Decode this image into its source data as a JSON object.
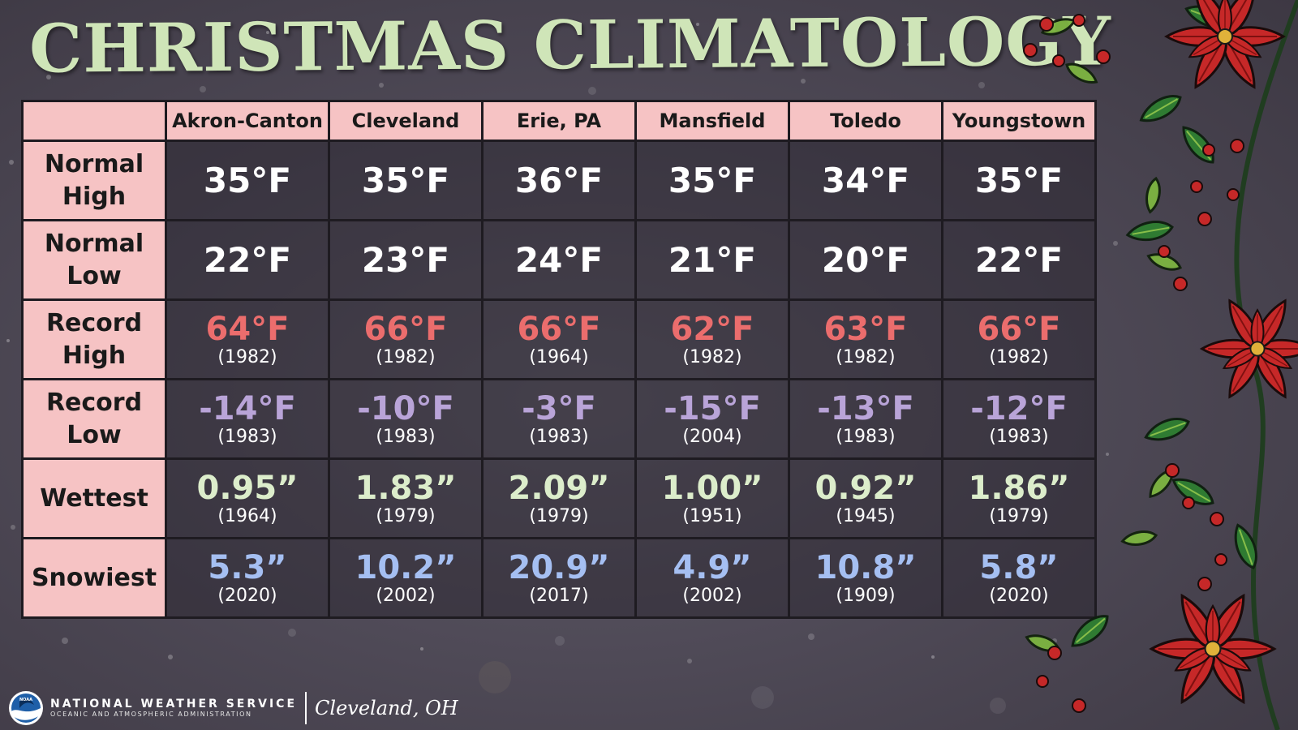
{
  "title": "CHRISTMAS CLIMATOLOGY",
  "colors": {
    "header_bg": "#f6c3c4",
    "record_high": "#eb6d6d",
    "record_low": "#b9a4d8",
    "wettest": "#dcedcb",
    "snowiest": "#a5bff2",
    "title": "#cfe5b8"
  },
  "cities": [
    "Akron-Canton",
    "Cleveland",
    "Erie, PA",
    "Mansfield",
    "Toledo",
    "Youngstown"
  ],
  "rows": [
    {
      "label_lines": [
        "Normal",
        "High"
      ],
      "style": "normal",
      "cells": [
        {
          "value": "35°F"
        },
        {
          "value": "35°F"
        },
        {
          "value": "36°F"
        },
        {
          "value": "35°F"
        },
        {
          "value": "34°F"
        },
        {
          "value": "35°F"
        }
      ]
    },
    {
      "label_lines": [
        "Normal",
        "Low"
      ],
      "style": "normal",
      "cells": [
        {
          "value": "22°F"
        },
        {
          "value": "23°F"
        },
        {
          "value": "24°F"
        },
        {
          "value": "21°F"
        },
        {
          "value": "20°F"
        },
        {
          "value": "22°F"
        }
      ]
    },
    {
      "label_lines": [
        "Record",
        "High"
      ],
      "style": "rhigh",
      "cells": [
        {
          "value": "64°F",
          "year": "(1982)"
        },
        {
          "value": "66°F",
          "year": "(1982)"
        },
        {
          "value": "66°F",
          "year": "(1964)"
        },
        {
          "value": "62°F",
          "year": "(1982)"
        },
        {
          "value": "63°F",
          "year": "(1982)"
        },
        {
          "value": "66°F",
          "year": "(1982)"
        }
      ]
    },
    {
      "label_lines": [
        "Record",
        "Low"
      ],
      "style": "rlow",
      "cells": [
        {
          "value": "-14°F",
          "year": "(1983)"
        },
        {
          "value": "-10°F",
          "year": "(1983)"
        },
        {
          "value": "-3°F",
          "year": "(1983)"
        },
        {
          "value": "-15°F",
          "year": "(2004)"
        },
        {
          "value": "-13°F",
          "year": "(1983)"
        },
        {
          "value": "-12°F",
          "year": "(1983)"
        }
      ]
    },
    {
      "label_lines": [
        "Wettest"
      ],
      "style": "wet",
      "cells": [
        {
          "value": "0.95”",
          "year": "(1964)"
        },
        {
          "value": "1.83”",
          "year": "(1979)"
        },
        {
          "value": "2.09”",
          "year": "(1979)"
        },
        {
          "value": "1.00”",
          "year": "(1951)"
        },
        {
          "value": "0.92”",
          "year": "(1945)"
        },
        {
          "value": "1.86”",
          "year": "(1979)"
        }
      ]
    },
    {
      "label_lines": [
        "Snowiest"
      ],
      "style": "snow",
      "cells": [
        {
          "value": "5.3”",
          "year": "(2020)"
        },
        {
          "value": "10.2”",
          "year": "(2002)"
        },
        {
          "value": "20.9”",
          "year": "(2017)"
        },
        {
          "value": "4.9”",
          "year": "(2002)"
        },
        {
          "value": "10.8”",
          "year": "(1909)"
        },
        {
          "value": "5.8”",
          "year": "(2020)"
        }
      ]
    }
  ],
  "footer": {
    "logo_label": "NOAA",
    "agency": "NATIONAL WEATHER SERVICE",
    "subagency": "OCEANIC AND ATMOSPHERIC ADMINISTRATION",
    "office": "Cleveland, OH"
  }
}
